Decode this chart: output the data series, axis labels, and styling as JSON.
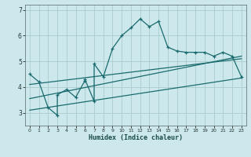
{
  "title": "",
  "xlabel": "Humidex (Indice chaleur)",
  "bg_color": "#cce8ec",
  "grid_color": "#aacccc",
  "line_color": "#1a6b6e",
  "xlim": [
    -0.5,
    23.5
  ],
  "ylim": [
    2.5,
    7.2
  ],
  "yticks": [
    3,
    4,
    5,
    6,
    7
  ],
  "xticks": [
    0,
    1,
    2,
    3,
    4,
    5,
    6,
    7,
    8,
    9,
    10,
    11,
    12,
    13,
    14,
    15,
    16,
    17,
    18,
    19,
    20,
    21,
    22,
    23
  ],
  "curve_x": [
    0,
    1,
    2,
    3,
    3,
    4,
    5,
    6,
    6,
    7,
    7,
    8,
    9,
    10,
    11,
    12,
    13,
    14,
    15,
    16,
    17,
    18,
    19,
    20,
    21,
    22,
    23
  ],
  "curve_y": [
    4.5,
    4.2,
    3.2,
    2.9,
    3.7,
    3.9,
    3.6,
    4.25,
    4.3,
    3.45,
    4.9,
    4.4,
    5.5,
    6.0,
    6.3,
    6.65,
    6.35,
    6.55,
    5.55,
    5.4,
    5.35,
    5.35,
    5.35,
    5.2,
    5.35,
    5.2,
    4.4
  ],
  "line1_x": [
    0,
    23
  ],
  "line1_y": [
    3.1,
    4.35
  ],
  "line2_x": [
    0,
    23
  ],
  "line2_y": [
    3.55,
    5.2
  ],
  "line3_x": [
    0,
    23
  ],
  "line3_y": [
    4.1,
    5.1
  ]
}
